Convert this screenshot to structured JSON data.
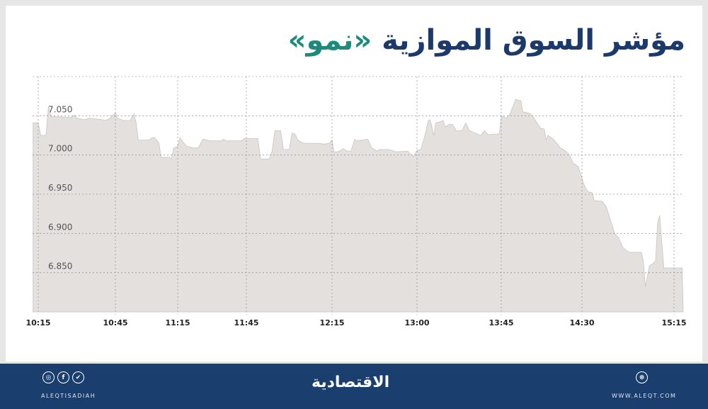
{
  "title": {
    "main": "مؤشر السوق الموازية",
    "accent": "«نمو»",
    "main_color": "#1b3a6b",
    "accent_color": "#1c8b7b"
  },
  "chart_data": {
    "type": "area",
    "title": "مؤشر السوق الموازية «نمو»",
    "xlabel": "",
    "ylabel": "",
    "ylim": [
      6.8,
      7.1
    ],
    "grid": true,
    "fill_color": "#e3e0de",
    "line_color": "#c9c5c2",
    "x_ticks": [
      "10:15",
      "10:45",
      "11:15",
      "11:45",
      "12:15",
      "13:00",
      "13:45",
      "14:30",
      "15:15"
    ],
    "y_ticks": [
      "6.850",
      "6.900",
      "6.950",
      "7.000",
      "7.050"
    ],
    "points": [
      [
        "10:13",
        7.041
      ],
      [
        "10:15",
        7.041
      ],
      [
        "10:16",
        7.025
      ],
      [
        "10:18",
        7.025
      ],
      [
        "10:19",
        7.062
      ],
      [
        "10:20",
        7.049
      ],
      [
        "10:28",
        7.048
      ],
      [
        "10:29",
        7.051
      ],
      [
        "10:30",
        7.047
      ],
      [
        "10:33",
        7.045
      ],
      [
        "10:35",
        7.047
      ],
      [
        "10:40",
        7.045
      ],
      [
        "10:41",
        7.044
      ],
      [
        "10:43",
        7.047
      ],
      [
        "10:45",
        7.054
      ],
      [
        "10:46",
        7.047
      ],
      [
        "10:49",
        7.044
      ],
      [
        "10:52",
        7.044
      ],
      [
        "10:54",
        7.052
      ],
      [
        "10:55",
        7.041
      ],
      [
        "10:56",
        7.019
      ],
      [
        "11:01",
        7.019
      ],
      [
        "11:03",
        7.022
      ],
      [
        "11:04",
        7.022
      ],
      [
        "11:06",
        7.015
      ],
      [
        "11:07",
        6.997
      ],
      [
        "11:11",
        6.997
      ],
      [
        "11:12",
        6.995
      ],
      [
        "11:13",
        7.009
      ],
      [
        "11:15",
        7.011
      ],
      [
        "11:16",
        7.022
      ],
      [
        "11:18",
        7.014
      ],
      [
        "11:19",
        7.011
      ],
      [
        "11:22",
        7.009
      ],
      [
        "11:24",
        7.009
      ],
      [
        "11:26",
        7.02
      ],
      [
        "11:29",
        7.018
      ],
      [
        "11:34",
        7.018
      ],
      [
        "11:35",
        7.02
      ],
      [
        "11:36",
        7.018
      ],
      [
        "11:43",
        7.018
      ],
      [
        "11:44",
        7.021
      ],
      [
        "11:49",
        7.021
      ],
      [
        "11:50",
        6.995
      ],
      [
        "11:53",
        6.995
      ],
      [
        "11:54",
        7.005
      ],
      [
        "11:55",
        7.031
      ],
      [
        "11:57",
        7.031
      ],
      [
        "11:58",
        7.007
      ],
      [
        "12:00",
        7.007
      ],
      [
        "12:01",
        7.028
      ],
      [
        "12:02",
        7.027
      ],
      [
        "12:03",
        7.019
      ],
      [
        "12:05",
        7.015
      ],
      [
        "12:10",
        7.015
      ],
      [
        "12:12",
        7.014
      ],
      [
        "12:14",
        7.015
      ],
      [
        "12:15",
        7.019
      ],
      [
        "12:16",
        7.004
      ],
      [
        "12:18",
        7.004
      ],
      [
        "12:21",
        7.008
      ],
      [
        "12:23",
        7.005
      ],
      [
        "12:25",
        7.005
      ],
      [
        "12:27",
        7.02
      ],
      [
        "12:28",
        7.018
      ],
      [
        "12:34",
        7.02
      ],
      [
        "12:36",
        7.009
      ],
      [
        "12:39",
        7.005
      ],
      [
        "12:40",
        7.007
      ],
      [
        "12:45",
        7.007
      ],
      [
        "12:49",
        7.004
      ],
      [
        "12:55",
        7.005
      ],
      [
        "12:58",
        6.998
      ],
      [
        "13:00",
        7.006
      ],
      [
        "13:02",
        7.007
      ],
      [
        "13:04",
        7.023
      ],
      [
        "13:06",
        7.044
      ],
      [
        "13:07",
        7.045
      ],
      [
        "13:09",
        7.025
      ],
      [
        "13:10",
        7.041
      ],
      [
        "13:12",
        7.042
      ],
      [
        "13:14",
        7.044
      ],
      [
        "13:15",
        7.036
      ],
      [
        "13:17",
        7.039
      ],
      [
        "13:19",
        7.039
      ],
      [
        "13:21",
        7.031
      ],
      [
        "13:24",
        7.031
      ],
      [
        "13:26",
        7.041
      ],
      [
        "13:28",
        7.031
      ],
      [
        "13:31",
        7.028
      ],
      [
        "13:34",
        7.025
      ],
      [
        "13:36",
        7.031
      ],
      [
        "13:38",
        7.026
      ],
      [
        "13:44",
        7.027
      ],
      [
        "13:45",
        7.05
      ],
      [
        "13:48",
        7.047
      ],
      [
        "13:50",
        7.053
      ],
      [
        "13:53",
        7.071
      ],
      [
        "13:56",
        7.069
      ],
      [
        "13:57",
        7.055
      ],
      [
        "14:01",
        7.053
      ],
      [
        "14:02",
        7.051
      ],
      [
        "14:07",
        7.034
      ],
      [
        "14:09",
        7.033
      ],
      [
        "14:10",
        7.019
      ],
      [
        "14:11",
        7.025
      ],
      [
        "14:14",
        7.02
      ],
      [
        "14:16",
        7.015
      ],
      [
        "14:18",
        7.009
      ],
      [
        "14:21",
        7.005
      ],
      [
        "14:23",
        7.0
      ],
      [
        "14:25",
        6.99
      ],
      [
        "14:28",
        6.985
      ],
      [
        "14:31",
        6.962
      ],
      [
        "14:33",
        6.953
      ],
      [
        "14:35",
        6.952
      ],
      [
        "14:36",
        6.942
      ],
      [
        "14:40",
        6.941
      ],
      [
        "14:42",
        6.933
      ],
      [
        "14:46",
        6.9
      ],
      [
        "14:48",
        6.894
      ],
      [
        "14:50",
        6.882
      ],
      [
        "14:53",
        6.876
      ],
      [
        "14:59",
        6.876
      ],
      [
        "15:00",
        6.865
      ],
      [
        "15:01",
        6.832
      ],
      [
        "15:03",
        6.859
      ],
      [
        "15:05",
        6.862
      ],
      [
        "15:06",
        6.865
      ],
      [
        "15:07",
        6.914
      ],
      [
        "15:08",
        6.923
      ],
      [
        "15:10",
        6.856
      ],
      [
        "15:19",
        6.856
      ]
    ]
  },
  "footer": {
    "handle": "ALEQTISADIAH",
    "logo": "الاقتصادية",
    "website": "WWW.ALEQT.COM",
    "social_icons": [
      "instagram-icon",
      "facebook-icon",
      "twitter-icon"
    ],
    "social_glyphs": [
      "◎",
      "f",
      "✔"
    ],
    "web_icon": "globe-icon"
  }
}
